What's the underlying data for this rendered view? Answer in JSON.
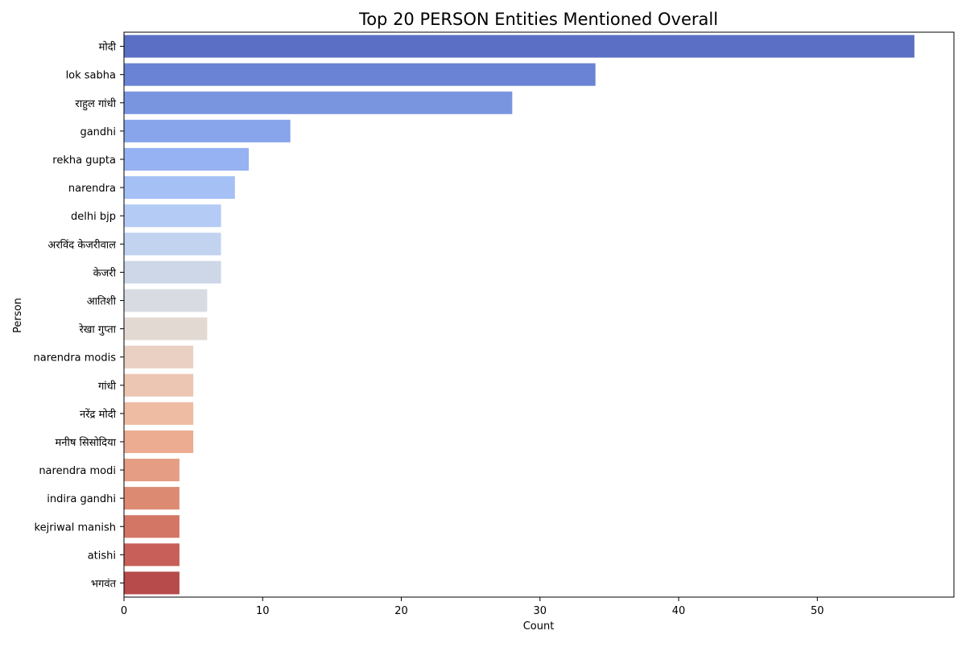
{
  "chart_data": {
    "type": "bar",
    "orientation": "horizontal",
    "title": "Top 20 PERSON Entities Mentioned Overall",
    "xlabel": "Count",
    "ylabel": "Person",
    "xlim": [
      0,
      59.85
    ],
    "xticks": [
      0,
      10,
      20,
      30,
      40,
      50
    ],
    "grid": false,
    "legend": "none",
    "palette": "coolwarm",
    "categories": [
      "मोदी",
      "lok sabha",
      "राहुल गांधी",
      "gandhi",
      "rekha gupta",
      "narendra",
      "delhi bjp",
      "अरविंद केजरीवाल",
      "केजरी",
      "आतिशी",
      "रेखा गुप्ता",
      "narendra modis",
      "गांधी",
      "नरेंद्र मोदी",
      "मनीष सिसोदिया",
      "narendra modi",
      "indira gandhi",
      "kejriwal manish",
      "atishi",
      "भगवंत"
    ],
    "values": [
      57,
      34,
      28,
      12,
      9,
      8,
      7,
      7,
      7,
      6,
      6,
      5,
      5,
      5,
      5,
      4,
      4,
      4,
      4,
      4
    ],
    "colors": [
      "#5b6fc4",
      "#6a83d4",
      "#7a95e0",
      "#88a4eb",
      "#96b2f2",
      "#a5c0f5",
      "#b4cbf5",
      "#c2d3f0",
      "#cdd7e8",
      "#d8dbe2",
      "#e3d9d3",
      "#e9d0c3",
      "#ecc6b3",
      "#eebca3",
      "#ebac92",
      "#e59d83",
      "#dd8a73",
      "#d47665",
      "#c85f58",
      "#b74a4a"
    ]
  }
}
